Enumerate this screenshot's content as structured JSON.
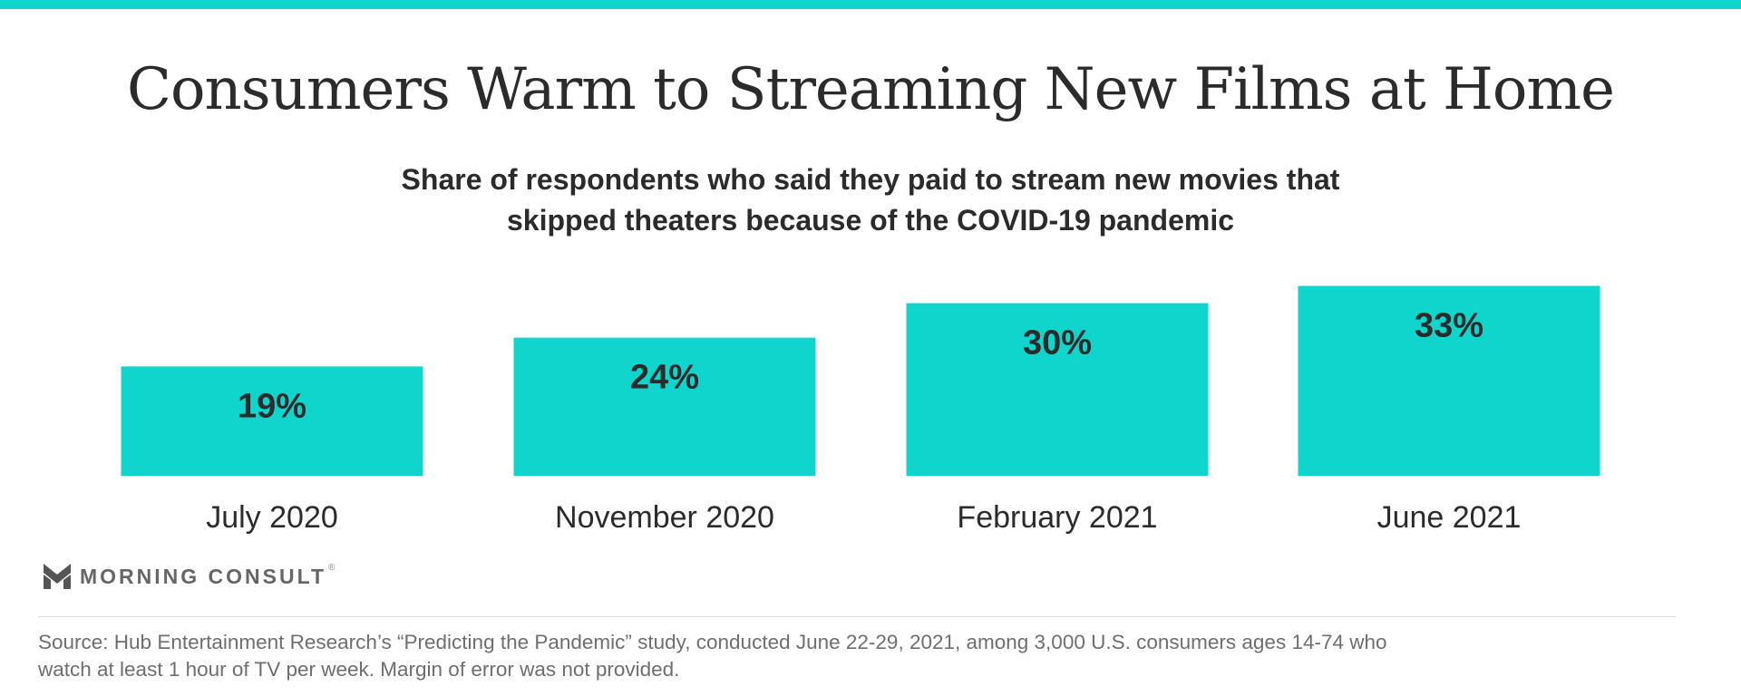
{
  "title": "Consumers Warm to Streaming New Films at Home",
  "subtitle_line1": "Share of respondents who said they paid to stream new movies that",
  "subtitle_line2": "skipped theaters because of the COVID-19 pandemic",
  "brand": "MORNING CONSULT",
  "brand_reg": "®",
  "source_line1": "Source: Hub Entertainment Research’s “Predicting the Pandemic” study, conducted June 22-29, 2021, among 3,000 U.S. consumers ages 14-74 who",
  "source_line2": "watch at least 1 hour of TV per week. Margin of error was not provided.",
  "colors": {
    "accent": "#10d5cc",
    "text": "#2b2b2b",
    "muted": "#6e6e6e"
  },
  "chart_data": {
    "type": "bar",
    "categories": [
      "July 2020",
      "November 2020",
      "February 2021",
      "June 2021"
    ],
    "values": [
      19,
      24,
      30,
      33
    ],
    "value_labels": [
      "19%",
      "24%",
      "30%",
      "33%"
    ],
    "unit": "%",
    "ylim": [
      0,
      40
    ],
    "grid": false,
    "legend": "none"
  }
}
